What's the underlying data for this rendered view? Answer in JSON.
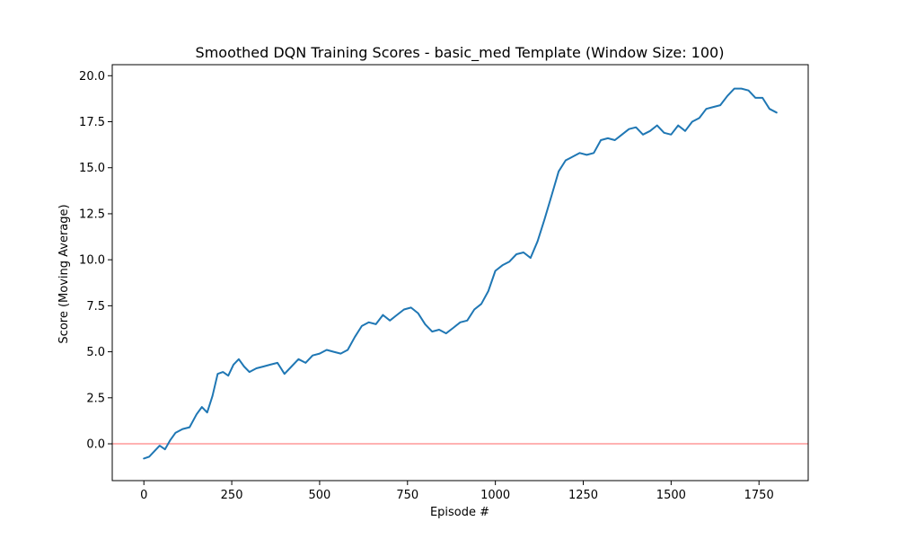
{
  "chart_data": {
    "type": "line",
    "title": "Smoothed DQN Training Scores - basic_med Template (Window Size: 100)",
    "xlabel": "Episode #",
    "ylabel": "Score (Moving Average)",
    "xlim": [
      -90,
      1890
    ],
    "ylim": [
      -2.0,
      20.6
    ],
    "xticks": [
      0,
      250,
      500,
      750,
      1000,
      1250,
      1500,
      1750
    ],
    "xtick_labels": [
      "0",
      "250",
      "500",
      "750",
      "1000",
      "1250",
      "1500",
      "1750"
    ],
    "yticks": [
      0.0,
      2.5,
      5.0,
      7.5,
      10.0,
      12.5,
      15.0,
      17.5,
      20.0
    ],
    "ytick_labels": [
      "0.0",
      "2.5",
      "5.0",
      "7.5",
      "10.0",
      "12.5",
      "15.0",
      "17.5",
      "20.0"
    ],
    "grid": false,
    "reference_line": {
      "y": 0.0,
      "color": "#ff9999"
    },
    "series": [
      {
        "color": "#1f77b4",
        "x": [
          0,
          15,
          30,
          45,
          60,
          75,
          90,
          110,
          130,
          150,
          165,
          180,
          195,
          210,
          225,
          240,
          255,
          270,
          285,
          300,
          320,
          340,
          360,
          380,
          400,
          420,
          440,
          460,
          480,
          500,
          520,
          540,
          560,
          580,
          600,
          620,
          640,
          660,
          680,
          700,
          720,
          740,
          760,
          780,
          800,
          820,
          840,
          860,
          880,
          900,
          920,
          940,
          960,
          980,
          1000,
          1020,
          1040,
          1060,
          1080,
          1100,
          1120,
          1140,
          1160,
          1180,
          1200,
          1220,
          1240,
          1260,
          1280,
          1300,
          1320,
          1340,
          1360,
          1380,
          1400,
          1420,
          1440,
          1460,
          1480,
          1500,
          1520,
          1540,
          1560,
          1580,
          1600,
          1620,
          1640,
          1660,
          1680,
          1700,
          1720,
          1740,
          1760,
          1780,
          1800
        ],
        "y": [
          -0.8,
          -0.7,
          -0.4,
          -0.1,
          -0.3,
          0.2,
          0.6,
          0.8,
          0.9,
          1.6,
          2.0,
          1.7,
          2.6,
          3.8,
          3.9,
          3.7,
          4.3,
          4.6,
          4.2,
          3.9,
          4.1,
          4.2,
          4.3,
          4.4,
          3.8,
          4.2,
          4.6,
          4.4,
          4.8,
          4.9,
          5.1,
          5.0,
          4.9,
          5.1,
          5.8,
          6.4,
          6.6,
          6.5,
          7.0,
          6.7,
          7.0,
          7.3,
          7.4,
          7.1,
          6.5,
          6.1,
          6.2,
          6.0,
          6.3,
          6.6,
          6.7,
          7.3,
          7.6,
          8.3,
          9.4,
          9.7,
          9.9,
          10.3,
          10.4,
          10.1,
          11.0,
          12.2,
          13.5,
          14.8,
          15.4,
          15.6,
          15.8,
          15.7,
          15.8,
          16.5,
          16.6,
          16.5,
          16.8,
          17.1,
          17.2,
          16.8,
          17.0,
          17.3,
          16.9,
          16.8,
          17.3,
          17.0,
          17.5,
          17.7,
          18.2,
          18.3,
          18.4,
          18.9,
          19.3,
          19.3,
          19.2,
          18.8,
          18.8,
          18.2,
          18.0
        ]
      }
    ]
  }
}
